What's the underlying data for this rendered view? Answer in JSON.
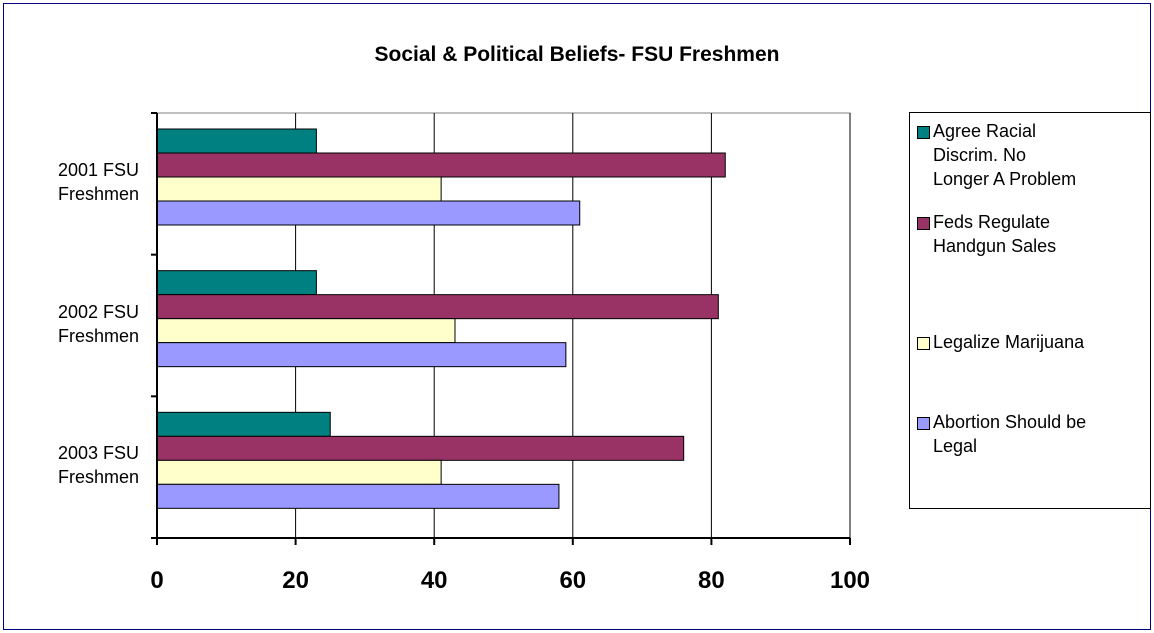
{
  "chart_data": {
    "type": "bar",
    "orientation": "horizontal",
    "title": "Social & Political Beliefs- FSU Freshmen",
    "categories": [
      "2001 FSU Freshmen",
      "2002 FSU Freshmen",
      "2003 FSU Freshmen"
    ],
    "category_lines": [
      [
        "2001 FSU",
        "Freshmen"
      ],
      [
        "2002 FSU",
        "Freshmen"
      ],
      [
        "2003 FSU",
        "Freshmen"
      ]
    ],
    "series": [
      {
        "name": "Agree Racial Discrim. No Longer A Problem",
        "color": "#008080",
        "values": [
          23,
          23,
          25
        ]
      },
      {
        "name": "Feds Regulate Handgun Sales",
        "color": "#993366",
        "values": [
          82,
          81,
          76
        ]
      },
      {
        "name": "Legalize Marijuana",
        "color": "#FFFFCC",
        "values": [
          41,
          43,
          41
        ]
      },
      {
        "name": "Abortion Should be Legal",
        "color": "#9999FF",
        "values": [
          61,
          59,
          58
        ]
      }
    ],
    "xlim": [
      0,
      100
    ],
    "xticks": [
      0,
      20,
      40,
      60,
      80,
      100
    ],
    "xtick_labels": [
      "0",
      "20",
      "40",
      "60",
      "80",
      "100"
    ],
    "grid": true,
    "plot_background": "#ffffff",
    "legend_position": "right",
    "legend_lines": [
      [
        "Agree Racial",
        "Discrim. No",
        "Longer A Problem"
      ],
      [
        "Feds Regulate",
        "Handgun Sales"
      ],
      [
        "Legalize Marijuana"
      ],
      [
        "Abortion Should be",
        "Legal"
      ]
    ]
  }
}
